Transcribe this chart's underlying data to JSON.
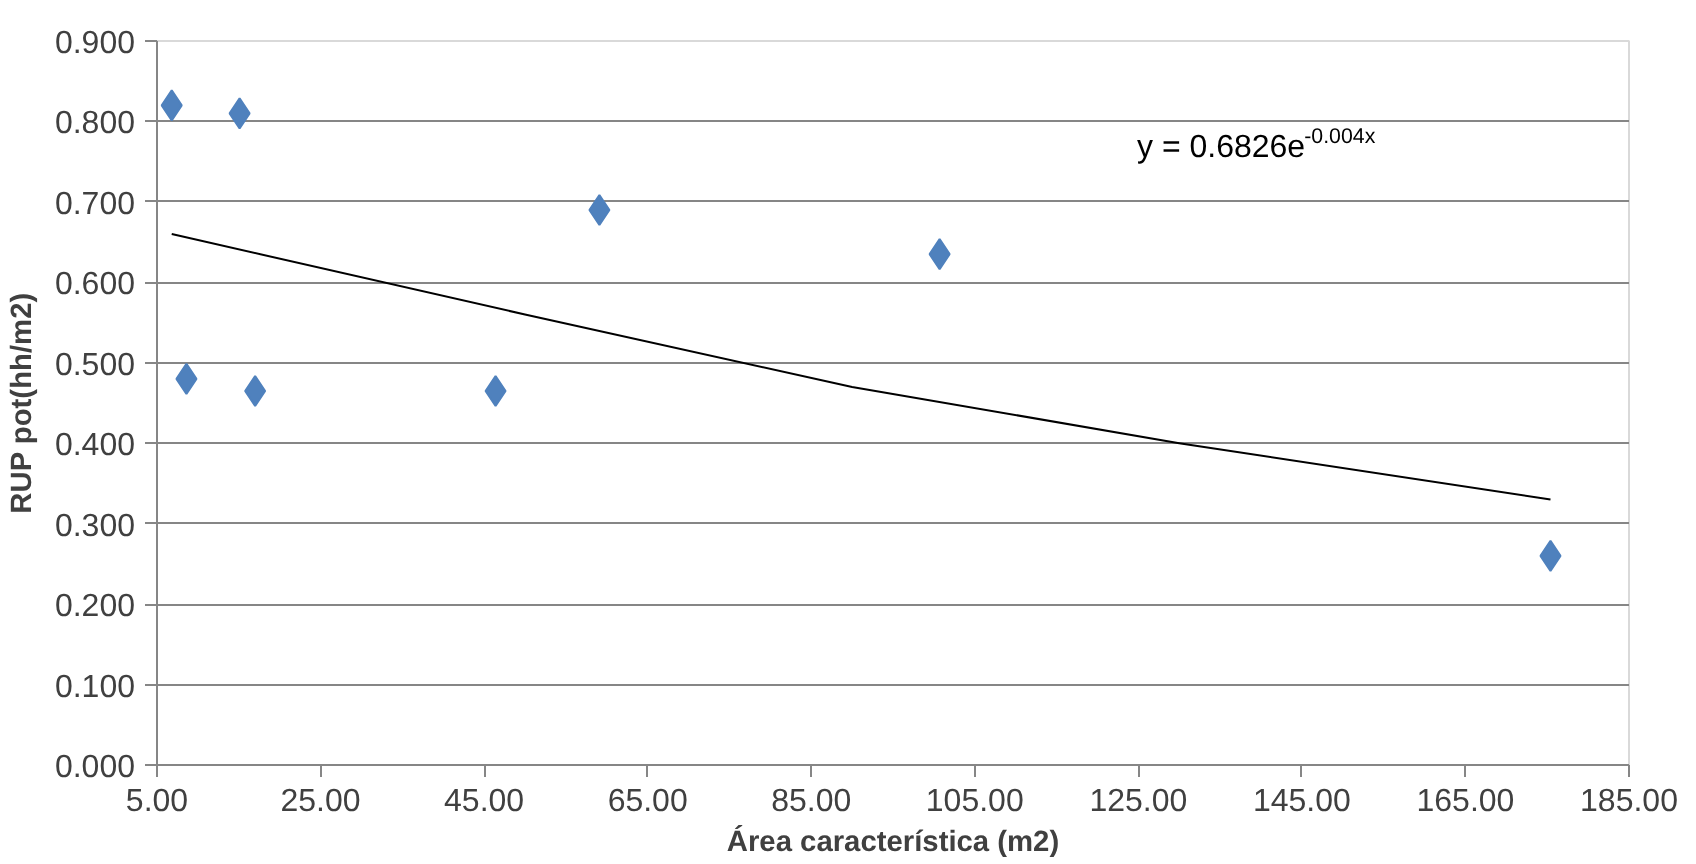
{
  "chart_data": {
    "type": "scatter",
    "xlabel": "Área característica (m2)",
    "ylabel": "RUP pot(hh/m2)",
    "series": [
      {
        "color": "#4f81bd",
        "marker": "diamond",
        "x": [
          6.8,
          8.6,
          15.1,
          17.0,
          46.4,
          59.1,
          100.7,
          175.4
        ],
        "values": [
          0.82,
          0.48,
          0.81,
          0.465,
          0.465,
          0.69,
          0.635,
          0.26
        ]
      },
      {
        "type": "line",
        "color": "#000000",
        "marker": "none",
        "x": [
          6.8,
          50,
          90,
          130,
          175.4
        ],
        "values": [
          0.66,
          0.56,
          0.47,
          0.4,
          0.33
        ]
      }
    ],
    "annotations": [
      "y = 0.6826e$^{-0.004x}$"
    ],
    "xlim": [
      5,
      185
    ],
    "ylim": [
      0,
      0.9
    ],
    "xticks": [
      {
        "value": 5,
        "label": "5.00"
      },
      {
        "value": 25,
        "label": "25.00"
      },
      {
        "value": 45,
        "label": "45.00"
      },
      {
        "value": 65,
        "label": "65.00"
      },
      {
        "value": 85,
        "label": "85.00"
      },
      {
        "value": 105,
        "label": "105.00"
      },
      {
        "value": 125,
        "label": "125.00"
      },
      {
        "value": 145,
        "label": "145.00"
      },
      {
        "value": 165,
        "label": "165.00"
      },
      {
        "value": 185,
        "label": "185.00"
      }
    ],
    "yticks": [
      {
        "value": 0,
        "label": "0.000"
      },
      {
        "value": 0.1,
        "label": "0.100"
      },
      {
        "value": 0.2,
        "label": "0.200"
      },
      {
        "value": 0.3,
        "label": "0.300"
      },
      {
        "value": 0.4,
        "label": "0.400"
      },
      {
        "value": 0.5,
        "label": "0.500"
      },
      {
        "value": 0.6,
        "label": "0.600"
      },
      {
        "value": 0.7,
        "label": "0.700"
      },
      {
        "value": 0.8,
        "label": "0.800"
      },
      {
        "value": 0.9,
        "label": "0.900"
      }
    ],
    "grid": "y"
  }
}
